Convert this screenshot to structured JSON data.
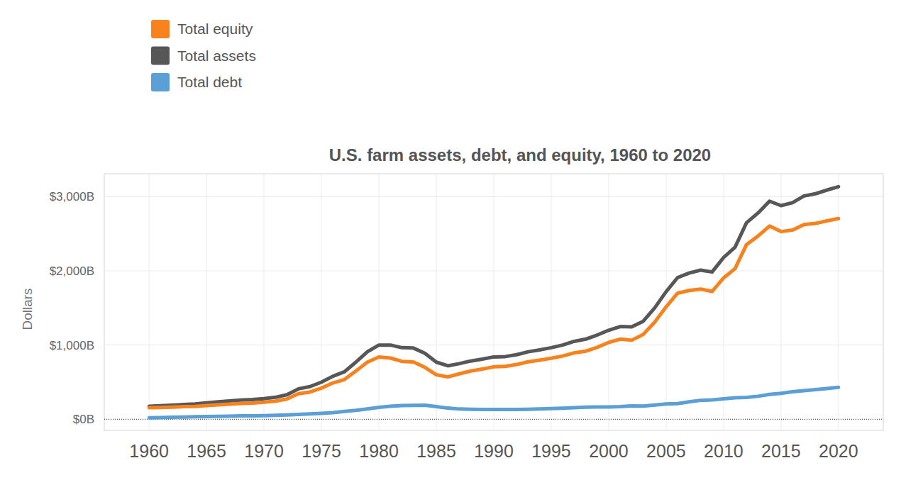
{
  "chart_data": {
    "type": "line",
    "title": "U.S. farm assets, debt, and equity, 1960 to 2020",
    "y_label": "Dollars",
    "legend": "top-left",
    "grid": true,
    "x": [
      1960,
      1961,
      1962,
      1963,
      1964,
      1965,
      1966,
      1967,
      1968,
      1969,
      1970,
      1971,
      1972,
      1973,
      1974,
      1975,
      1976,
      1977,
      1978,
      1979,
      1980,
      1981,
      1982,
      1983,
      1984,
      1985,
      1986,
      1987,
      1988,
      1989,
      1990,
      1991,
      1992,
      1993,
      1994,
      1995,
      1996,
      1997,
      1998,
      1999,
      2000,
      2001,
      2002,
      2003,
      2004,
      2005,
      2006,
      2007,
      2008,
      2009,
      2010,
      2011,
      2012,
      2013,
      2014,
      2015,
      2016,
      2017,
      2018,
      2019,
      2020
    ],
    "xlim": [
      1956.1,
      2023.9
    ],
    "xticks": [
      1960,
      1965,
      1970,
      1975,
      1980,
      1985,
      1990,
      1995,
      2000,
      2005,
      2010,
      2015,
      2020
    ],
    "ylim": [
      -150,
      3310
    ],
    "yticks": [
      {
        "value": 0,
        "label": "$0B"
      },
      {
        "value": 1000,
        "label": "$1,000B"
      },
      {
        "value": 2000,
        "label": "$2,000B"
      },
      {
        "value": 3000,
        "label": "$3,000B"
      }
    ],
    "series": [
      {
        "name": "Total equity",
        "color": "#f8821e",
        "values": [
          155,
          159,
          164,
          169,
          173,
          184,
          195,
          204,
          213,
          219,
          229,
          244,
          273,
          345,
          367,
          420,
          490,
          535,
          650,
          770,
          840,
          825,
          780,
          772,
          700,
          600,
          570,
          612,
          650,
          677,
          707,
          712,
          738,
          775,
          797,
          822,
          852,
          895,
          918,
          970,
          1035,
          1080,
          1065,
          1142,
          1308,
          1515,
          1700,
          1735,
          1755,
          1723,
          1905,
          2030,
          2355,
          2470,
          2605,
          2530,
          2550,
          2625,
          2640,
          2675,
          2705
        ]
      },
      {
        "name": "Total assets",
        "color": "#575757",
        "values": [
          175,
          182,
          190,
          198,
          206,
          220,
          234,
          246,
          258,
          266,
          278,
          296,
          330,
          410,
          440,
          500,
          580,
          640,
          770,
          910,
          1000,
          1000,
          965,
          960,
          890,
          770,
          720,
          750,
          785,
          810,
          840,
          845,
          870,
          910,
          935,
          965,
          1000,
          1050,
          1080,
          1135,
          1200,
          1250,
          1245,
          1320,
          1500,
          1720,
          1910,
          1970,
          2010,
          1985,
          2180,
          2320,
          2650,
          2780,
          2940,
          2880,
          2920,
          3010,
          3040,
          3090,
          3135
        ]
      },
      {
        "name": "Total debt",
        "color": "#5b9fd6",
        "values": [
          20,
          23,
          26,
          29,
          33,
          36,
          39,
          42,
          45,
          47,
          49,
          52,
          57,
          65,
          73,
          80,
          90,
          105,
          120,
          140,
          160,
          175,
          185,
          188,
          190,
          170,
          150,
          138,
          135,
          133,
          133,
          133,
          132,
          135,
          138,
          143,
          148,
          155,
          162,
          165,
          165,
          170,
          180,
          178,
          192,
          205,
          210,
          235,
          255,
          262,
          275,
          290,
          295,
          310,
          335,
          350,
          370,
          385,
          400,
          415,
          430
        ]
      }
    ]
  }
}
